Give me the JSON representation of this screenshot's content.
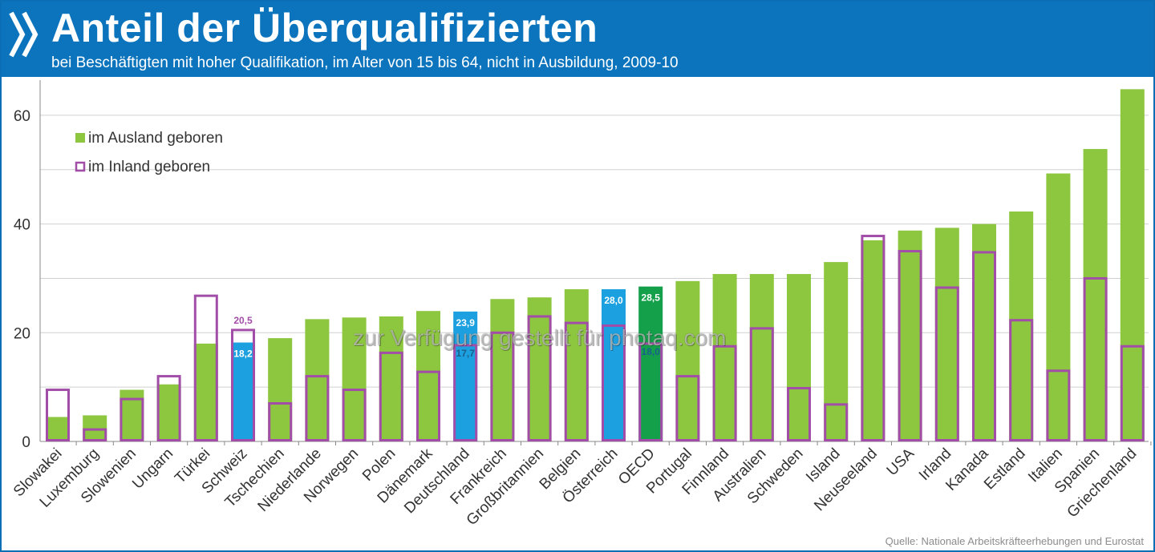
{
  "title": "Anteil der Überqualifizierten",
  "subtitle": "bei Beschäftigten mit hoher Qualifikation, im Alter von 15 bis 64, nicht in Ausbildung, 2009-10",
  "source": "Quelle: Nationale Arbeitskräfteerhebungen und Eurostat",
  "watermark": "zur Verfügung gestellt für photaq.com",
  "icon": "double-chevron-icon",
  "colors": {
    "header": "#0b74bd",
    "foreign": "#8dc63f",
    "native_outline": "#a24ea8",
    "highlight_blue": "#1ca0e0",
    "highlight_green": "#14a04b",
    "grid": "#d0d0d0",
    "axis_text": "#333333"
  },
  "chart_data": {
    "type": "bar",
    "title": "Anteil der Überqualifizierten",
    "xlabel": "",
    "ylabel": "",
    "ylim": [
      0,
      65
    ],
    "yticks": [
      0,
      20,
      40,
      60
    ],
    "grid": true,
    "legend_position": "top-left",
    "categories": [
      "Slowakei",
      "Luxemburg",
      "Slowenien",
      "Ungarn",
      "Türkei",
      "Schweiz",
      "Tschechien",
      "Niederlande",
      "Norwegen",
      "Polen",
      "Dänemark",
      "Deutschland",
      "Frankreich",
      "Großbritannien",
      "Belgien",
      "Österreich",
      "OECD",
      "Portugal",
      "Finnland",
      "Australien",
      "Schweden",
      "Island",
      "Neuseeland",
      "USA",
      "Irland",
      "Kanada",
      "Estland",
      "Italien",
      "Spanien",
      "Griechenland"
    ],
    "series": [
      {
        "name": "im Ausland geboren",
        "style": "filled",
        "values": [
          4.5,
          4.8,
          9.5,
          10.5,
          18.0,
          18.2,
          19.0,
          22.5,
          22.8,
          23.0,
          24.0,
          23.9,
          26.2,
          26.5,
          28.0,
          28.0,
          28.5,
          29.5,
          30.8,
          30.8,
          30.8,
          33.0,
          37.0,
          38.8,
          39.3,
          40.0,
          42.3,
          49.3,
          53.8,
          64.8
        ]
      },
      {
        "name": "im Inland geboren",
        "style": "outline",
        "values": [
          9.5,
          2.2,
          7.8,
          12.0,
          26.8,
          20.5,
          7.0,
          12.0,
          9.5,
          16.3,
          12.8,
          17.7,
          20.0,
          23.0,
          21.8,
          21.3,
          18.0,
          12.0,
          17.5,
          20.8,
          9.8,
          6.8,
          37.8,
          35.0,
          28.3,
          34.8,
          22.3,
          13.0,
          30.0,
          17.5
        ]
      }
    ],
    "highlights": {
      "Schweiz": "blue",
      "Deutschland": "blue",
      "Österreich": "blue",
      "OECD": "green"
    },
    "data_labels": [
      {
        "category": "Schweiz",
        "series": "im Ausland geboren",
        "text": "18,2"
      },
      {
        "category": "Schweiz",
        "series": "im Inland geboren",
        "text": "20,5"
      },
      {
        "category": "Deutschland",
        "series": "im Ausland geboren",
        "text": "23,9"
      },
      {
        "category": "Deutschland",
        "series": "im Inland geboren",
        "text": "17,7"
      },
      {
        "category": "Österreich",
        "series": "im Ausland geboren",
        "text": "28,0"
      },
      {
        "category": "OECD",
        "series": "im Ausland geboren",
        "text": "28,5"
      },
      {
        "category": "OECD",
        "series": "im Inland geboren",
        "text": "18,0"
      }
    ]
  }
}
